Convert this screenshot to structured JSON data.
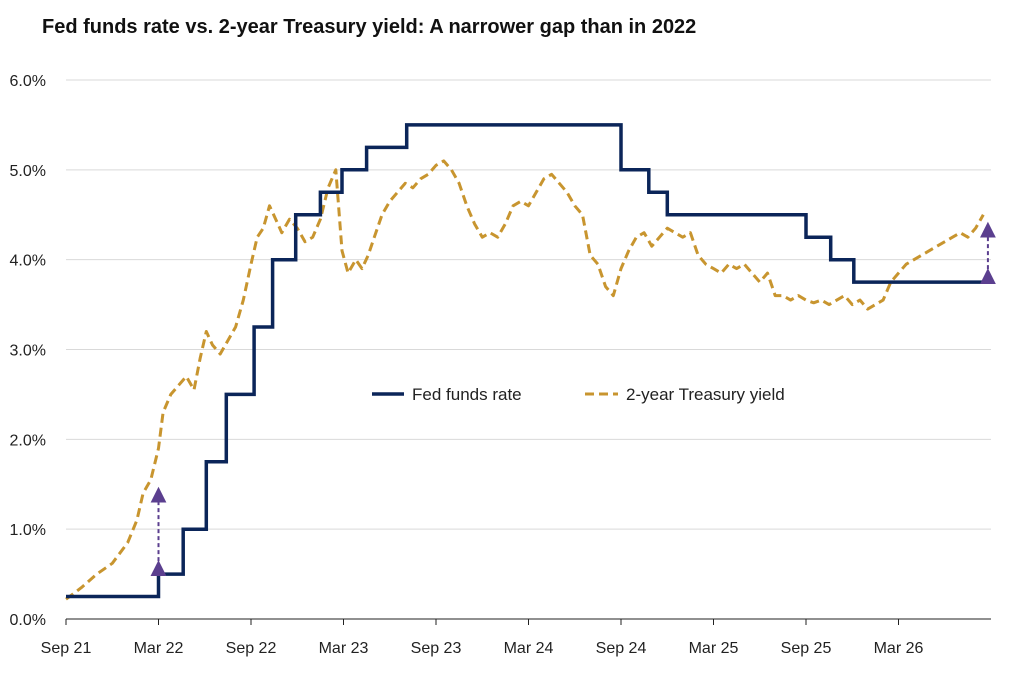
{
  "title": "Fed funds rate vs. 2-year Treasury yield: A narrower gap than in 2022",
  "colors": {
    "fed": "#0b2559",
    "treasury": "#c8952f",
    "arrow": "#5b3f8f",
    "grid": "#d9d9d9",
    "axis": "#222222"
  },
  "chart_data": {
    "type": "line",
    "title": "Fed funds rate vs. 2-year Treasury yield: A narrower gap than in 2022",
    "xlabel": "",
    "ylabel": "",
    "x_unit": "months since Sep 21",
    "xlim": [
      0,
      60
    ],
    "ylim": [
      0,
      6
    ],
    "grid": "horizontal",
    "legend_position": "center",
    "x_ticks": [
      {
        "x": 0,
        "label": "Sep 21"
      },
      {
        "x": 6,
        "label": "Mar 22"
      },
      {
        "x": 12,
        "label": "Sep 22"
      },
      {
        "x": 18,
        "label": "Mar 23"
      },
      {
        "x": 24,
        "label": "Sep 23"
      },
      {
        "x": 30,
        "label": "Mar 24"
      },
      {
        "x": 36,
        "label": "Sep 24"
      },
      {
        "x": 42,
        "label": "Mar 25"
      },
      {
        "x": 48,
        "label": "Sep 25"
      },
      {
        "x": 54,
        "label": "Mar 26"
      }
    ],
    "y_ticks": [
      {
        "y": 0,
        "label": "0.0%"
      },
      {
        "y": 1,
        "label": "1.0%"
      },
      {
        "y": 2,
        "label": "2.0%"
      },
      {
        "y": 3,
        "label": "3.0%"
      },
      {
        "y": 4,
        "label": "4.0%"
      },
      {
        "y": 5,
        "label": "5.0%"
      },
      {
        "y": 6,
        "label": "6.0%"
      }
    ],
    "series": [
      {
        "name": "Fed funds rate",
        "style": "solid-step",
        "points": [
          [
            0,
            0.25
          ],
          [
            6.0,
            0.5
          ],
          [
            7.6,
            1.0
          ],
          [
            9.1,
            1.75
          ],
          [
            10.4,
            2.5
          ],
          [
            12.2,
            3.25
          ],
          [
            13.4,
            4.0
          ],
          [
            14.9,
            4.5
          ],
          [
            16.5,
            4.75
          ],
          [
            17.9,
            5.0
          ],
          [
            19.5,
            5.25
          ],
          [
            22.1,
            5.5
          ],
          [
            36.0,
            5.0
          ],
          [
            37.8,
            4.75
          ],
          [
            39.0,
            4.5
          ],
          [
            48.0,
            4.25
          ],
          [
            49.6,
            4.0
          ],
          [
            51.1,
            3.75
          ],
          [
            60,
            3.75
          ]
        ]
      },
      {
        "name": "2-year Treasury yield",
        "style": "dashed",
        "points": [
          [
            0,
            0.22
          ],
          [
            1.0,
            0.35
          ],
          [
            2.0,
            0.5
          ],
          [
            3.0,
            0.62
          ],
          [
            4.0,
            0.85
          ],
          [
            4.6,
            1.1
          ],
          [
            5.0,
            1.4
          ],
          [
            5.5,
            1.55
          ],
          [
            6.0,
            1.9
          ],
          [
            6.3,
            2.3
          ],
          [
            6.8,
            2.5
          ],
          [
            7.3,
            2.6
          ],
          [
            7.8,
            2.7
          ],
          [
            8.3,
            2.55
          ],
          [
            8.7,
            2.9
          ],
          [
            9.1,
            3.2
          ],
          [
            9.5,
            3.05
          ],
          [
            10.0,
            2.95
          ],
          [
            10.5,
            3.1
          ],
          [
            11.0,
            3.25
          ],
          [
            11.5,
            3.55
          ],
          [
            12.0,
            3.95
          ],
          [
            12.4,
            4.25
          ],
          [
            12.8,
            4.35
          ],
          [
            13.2,
            4.6
          ],
          [
            13.6,
            4.45
          ],
          [
            14.0,
            4.3
          ],
          [
            14.5,
            4.45
          ],
          [
            15.0,
            4.35
          ],
          [
            15.5,
            4.2
          ],
          [
            16.0,
            4.25
          ],
          [
            16.5,
            4.45
          ],
          [
            17.0,
            4.8
          ],
          [
            17.5,
            5.0
          ],
          [
            17.9,
            4.1
          ],
          [
            18.3,
            3.85
          ],
          [
            18.8,
            4.0
          ],
          [
            19.2,
            3.9
          ],
          [
            19.6,
            4.05
          ],
          [
            20.0,
            4.25
          ],
          [
            20.5,
            4.5
          ],
          [
            21.0,
            4.65
          ],
          [
            21.5,
            4.75
          ],
          [
            22.0,
            4.85
          ],
          [
            22.5,
            4.8
          ],
          [
            23.0,
            4.9
          ],
          [
            23.5,
            4.95
          ],
          [
            24.0,
            5.05
          ],
          [
            24.5,
            5.1
          ],
          [
            25.0,
            5.0
          ],
          [
            25.5,
            4.85
          ],
          [
            26.0,
            4.6
          ],
          [
            26.5,
            4.4
          ],
          [
            27.0,
            4.25
          ],
          [
            27.5,
            4.3
          ],
          [
            28.0,
            4.25
          ],
          [
            28.5,
            4.4
          ],
          [
            29.0,
            4.6
          ],
          [
            29.5,
            4.65
          ],
          [
            30.0,
            4.6
          ],
          [
            30.5,
            4.75
          ],
          [
            31.0,
            4.9
          ],
          [
            31.5,
            4.95
          ],
          [
            32.0,
            4.85
          ],
          [
            32.5,
            4.75
          ],
          [
            33.0,
            4.6
          ],
          [
            33.5,
            4.5
          ],
          [
            34.0,
            4.05
          ],
          [
            34.5,
            3.95
          ],
          [
            35.0,
            3.7
          ],
          [
            35.5,
            3.6
          ],
          [
            36.0,
            3.9
          ],
          [
            36.5,
            4.1
          ],
          [
            37.0,
            4.25
          ],
          [
            37.5,
            4.3
          ],
          [
            38.0,
            4.15
          ],
          [
            38.5,
            4.25
          ],
          [
            39.0,
            4.35
          ],
          [
            39.5,
            4.3
          ],
          [
            40.0,
            4.25
          ],
          [
            40.5,
            4.3
          ],
          [
            41.0,
            4.05
          ],
          [
            41.5,
            3.95
          ],
          [
            42.0,
            3.9
          ],
          [
            42.5,
            3.85
          ],
          [
            43.0,
            3.95
          ],
          [
            43.5,
            3.9
          ],
          [
            44.0,
            3.95
          ],
          [
            44.5,
            3.85
          ],
          [
            45.0,
            3.75
          ],
          [
            45.5,
            3.85
          ],
          [
            46.0,
            3.6
          ],
          [
            46.5,
            3.6
          ],
          [
            47.0,
            3.55
          ],
          [
            47.5,
            3.6
          ],
          [
            48.0,
            3.55
          ],
          [
            48.5,
            3.52
          ],
          [
            49.0,
            3.55
          ],
          [
            49.5,
            3.5
          ],
          [
            50.0,
            3.55
          ],
          [
            50.5,
            3.6
          ],
          [
            51.0,
            3.5
          ],
          [
            51.5,
            3.55
          ],
          [
            52.0,
            3.45
          ],
          [
            52.5,
            3.5
          ],
          [
            53.0,
            3.55
          ],
          [
            53.5,
            3.75
          ],
          [
            54.0,
            3.85
          ],
          [
            54.5,
            3.95
          ],
          [
            55.0,
            4.0
          ],
          [
            55.5,
            4.05
          ],
          [
            56.0,
            4.1
          ],
          [
            56.5,
            4.15
          ],
          [
            57.0,
            4.2
          ],
          [
            57.5,
            4.25
          ],
          [
            58.0,
            4.3
          ],
          [
            58.5,
            4.25
          ],
          [
            59.0,
            4.35
          ],
          [
            59.5,
            4.5
          ]
        ]
      }
    ],
    "gap_arrows": [
      {
        "x": 6.0,
        "from": 0.5,
        "to": 1.45
      },
      {
        "x": 59.8,
        "from": 3.75,
        "to": 4.4
      }
    ],
    "legend": [
      "Fed funds rate",
      "2-year Treasury yield"
    ]
  }
}
